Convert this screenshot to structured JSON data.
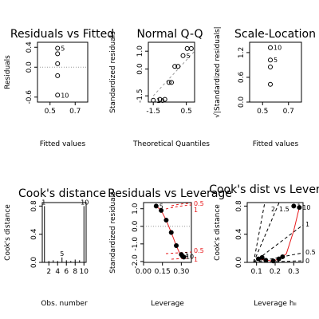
{
  "chart_data": [
    {
      "type": "scatter",
      "title": "Residuals vs Fitted",
      "xlabel": "Fitted values",
      "ylabel": "Residuals",
      "xlim": [
        0.4,
        0.8
      ],
      "ylim": [
        -0.7,
        0.5
      ],
      "xticks": [
        0.5,
        0.7
      ],
      "xtick_labels": [
        "0.5",
        "0.7"
      ],
      "yticks": [
        -0.6,
        0.0,
        0.4
      ],
      "ytick_labels": [
        "-0.6",
        "0.0",
        "0.4"
      ],
      "reference_line": {
        "type": "horizontal",
        "y": 0.0,
        "style": "dotted",
        "color": "#999999"
      },
      "points": [
        {
          "x": 0.56,
          "y": 0.38,
          "label": "5"
        },
        {
          "x": 0.56,
          "y": 0.27,
          "label": ""
        },
        {
          "x": 0.56,
          "y": 0.07,
          "label": ""
        },
        {
          "x": 0.56,
          "y": -0.17,
          "label": ""
        },
        {
          "x": 0.56,
          "y": -0.56,
          "label": "10"
        }
      ]
    },
    {
      "type": "scatter",
      "title": "Normal Q-Q",
      "xlabel": "Theoretical Quantiles",
      "ylabel": "Standardized residuals",
      "xlim": [
        -1.8,
        1.0
      ],
      "ylim": [
        -1.85,
        1.5
      ],
      "xticks": [
        -1.5,
        0.5
      ],
      "xtick_labels": [
        "-1.5",
        "0.5"
      ],
      "yticks": [
        -1.5,
        0.0,
        1.0
      ],
      "ytick_labels": [
        "-1.5",
        "0.0",
        "1.0"
      ],
      "reference_line": {
        "type": "diagonal",
        "from": [
          -1.5,
          -1.5
        ],
        "to": [
          1.3,
          1.3
        ],
        "style": "dashed",
        "color": "#999999"
      },
      "points": [
        {
          "x": -1.5,
          "y": -1.75,
          "label": "10"
        },
        {
          "x": -1.1,
          "y": -1.7,
          "label": ""
        },
        {
          "x": -0.8,
          "y": -1.7,
          "label": ""
        },
        {
          "x": -0.55,
          "y": -0.75,
          "label": ""
        },
        {
          "x": -0.4,
          "y": -0.75,
          "label": ""
        },
        {
          "x": -0.2,
          "y": 0.15,
          "label": ""
        },
        {
          "x": 0.0,
          "y": 0.15,
          "label": ""
        },
        {
          "x": 0.3,
          "y": 0.75,
          "label": "5"
        },
        {
          "x": 0.55,
          "y": 1.15,
          "label": ""
        },
        {
          "x": 0.8,
          "y": 1.15,
          "label": ""
        }
      ]
    },
    {
      "type": "scatter",
      "title": "Scale-Location",
      "xlabel": "Fitted values",
      "ylabel": "√|Standardized residuals|",
      "xlim": [
        0.4,
        0.8
      ],
      "ylim": [
        0.0,
        1.45
      ],
      "xticks": [
        0.5,
        0.7
      ],
      "xtick_labels": [
        "0.5",
        "0.7"
      ],
      "yticks": [
        0.0,
        0.6,
        1.2
      ],
      "ytick_labels": [
        "0.0",
        "0.6",
        "1.2"
      ],
      "points": [
        {
          "x": 0.56,
          "y": 1.32,
          "label": "10"
        },
        {
          "x": 0.56,
          "y": 1.02,
          "label": "5"
        },
        {
          "x": 0.56,
          "y": 0.85,
          "label": ""
        },
        {
          "x": 0.56,
          "y": 0.43,
          "label": ""
        }
      ]
    },
    {
      "type": "bar",
      "title": "Cook's distance",
      "xlabel": "Obs. number",
      "ylabel": "Cook's distance",
      "xlim": [
        0.5,
        10.5
      ],
      "ylim": [
        0.0,
        0.85
      ],
      "xticks": [
        2,
        4,
        6,
        8,
        10
      ],
      "xtick_labels": [
        "2",
        "4",
        "6",
        "8",
        "10"
      ],
      "yticks": [
        0.0,
        0.4,
        0.8
      ],
      "ytick_labels": [
        "0.0",
        "0.4",
        "0.8"
      ],
      "x": [
        1,
        2,
        3,
        4,
        5,
        6,
        7,
        8,
        9,
        10
      ],
      "values": [
        0.8,
        0.02,
        0.03,
        0.02,
        0.07,
        0.03,
        0.02,
        0.04,
        0.03,
        0.8
      ],
      "annotations": [
        {
          "x": 1,
          "text": "1"
        },
        {
          "x": 5,
          "text": "5"
        },
        {
          "x": 10,
          "text": "10"
        }
      ]
    },
    {
      "type": "scatter",
      "title": "Residuals vs Leverage",
      "xlabel": "Leverage",
      "ylabel": "Standardized residuals",
      "xlim": [
        0.0,
        0.38
      ],
      "ylim": [
        -2.05,
        1.35
      ],
      "xticks": [
        0.0,
        0.15,
        0.3
      ],
      "xtick_labels": [
        "0.00",
        "0.15",
        "0.30"
      ],
      "yticks": [
        -2.0,
        -1.0,
        0.0,
        1.0
      ],
      "ytick_labels": [
        "-2.0",
        "-1.0",
        "0.0",
        "1.0"
      ],
      "reference_line": {
        "type": "horizontal",
        "y": 0.0,
        "style": "dotted",
        "color": "#999999"
      },
      "smooth_line": {
        "color": "#e8191b",
        "x": [
          0.1,
          0.14,
          0.18,
          0.22,
          0.26,
          0.3
        ],
        "y": [
          1.15,
          0.9,
          0.35,
          -0.35,
          -1.1,
          -1.75
        ]
      },
      "cooks_contours": {
        "labels": [
          "0.5",
          "1",
          "0.5",
          "1"
        ],
        "color": "#e8191b"
      },
      "points": [
        {
          "x": 0.1,
          "y": 1.15,
          "label": "5"
        },
        {
          "x": 0.14,
          "y": 0.9,
          "label": ""
        },
        {
          "x": 0.18,
          "y": 0.35,
          "label": ""
        },
        {
          "x": 0.22,
          "y": -0.35,
          "label": ""
        },
        {
          "x": 0.26,
          "y": -1.1,
          "label": ""
        },
        {
          "x": 0.3,
          "y": -1.6,
          "label": "1"
        },
        {
          "x": 0.31,
          "y": -1.7,
          "label": "10"
        },
        {
          "x": 0.32,
          "y": -1.75,
          "label": ""
        }
      ]
    },
    {
      "type": "scatter",
      "title": "Cook's dist vs Leverage",
      "xlabel": "Leverage  hᵢᵢ",
      "ylabel": "Cook's distance",
      "xlim": [
        0.05,
        0.35
      ],
      "ylim": [
        0.0,
        0.85
      ],
      "xticks": [
        0.1,
        0.2,
        0.3
      ],
      "xtick_labels": [
        "0.1",
        "0.2",
        "0.3"
      ],
      "yticks": [
        0.0,
        0.4,
        0.8
      ],
      "ytick_labels": [
        "0.0",
        "0.4",
        "0.8"
      ],
      "contour_labels": [
        "2",
        "1.5",
        "1",
        "0.5",
        "0"
      ],
      "smooth_line": {
        "color": "#e8191b",
        "x": [
          0.11,
          0.15,
          0.19,
          0.22,
          0.26,
          0.3,
          0.33
        ],
        "y": [
          0.05,
          0.03,
          0.02,
          0.05,
          0.12,
          0.45,
          0.78
        ]
      },
      "points": [
        {
          "x": 0.11,
          "y": 0.05,
          "label": ""
        },
        {
          "x": 0.13,
          "y": 0.07,
          "label": ""
        },
        {
          "x": 0.15,
          "y": 0.03,
          "label": ""
        },
        {
          "x": 0.19,
          "y": 0.02,
          "label": ""
        },
        {
          "x": 0.22,
          "y": 0.05,
          "label": ""
        },
        {
          "x": 0.24,
          "y": 0.08,
          "label": ""
        },
        {
          "x": 0.3,
          "y": 0.8,
          "label": "1"
        },
        {
          "x": 0.33,
          "y": 0.78,
          "label": "10"
        }
      ]
    }
  ]
}
